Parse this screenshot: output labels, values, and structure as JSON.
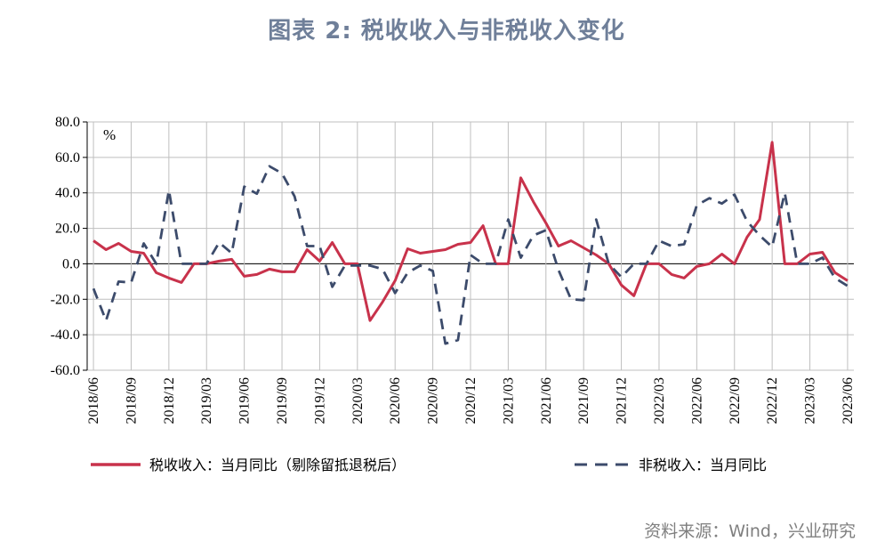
{
  "title": "图表 2: 税收收入与非税收入变化",
  "source": "资料来源：Wind，兴业研究",
  "colors": {
    "tax": "#c8324b",
    "nontax": "#3c4b6b",
    "grid": "#bfbfbf"
  },
  "chart_data": {
    "type": "line",
    "unit": "%",
    "ylim": [
      -60,
      80
    ],
    "yticks": [
      "80.0",
      "60.0",
      "40.0",
      "20.0",
      "0.0",
      "-20.0",
      "-40.0",
      "-60.0"
    ],
    "x_tick_labels": [
      "2018/06",
      "2018/09",
      "2018/12",
      "2019/03",
      "2019/06",
      "2019/09",
      "2019/12",
      "2020/03",
      "2020/06",
      "2020/09",
      "2020/12",
      "2021/03",
      "2021/06",
      "2021/09",
      "2021/12",
      "2022/03",
      "2022/06",
      "2022/09",
      "2022/12",
      "2023/03",
      "2023/06"
    ],
    "x": [
      "2018/06",
      "2018/07",
      "2018/08",
      "2018/09",
      "2018/10",
      "2018/11",
      "2018/12",
      "2019/01",
      "2019/02",
      "2019/03",
      "2019/04",
      "2019/05",
      "2019/06",
      "2019/07",
      "2019/08",
      "2019/09",
      "2019/10",
      "2019/11",
      "2019/12",
      "2020/01",
      "2020/02",
      "2020/03",
      "2020/04",
      "2020/05",
      "2020/06",
      "2020/07",
      "2020/08",
      "2020/09",
      "2020/10",
      "2020/11",
      "2020/12",
      "2021/01",
      "2021/02",
      "2021/03",
      "2021/04",
      "2021/05",
      "2021/06",
      "2021/07",
      "2021/08",
      "2021/09",
      "2021/10",
      "2021/11",
      "2021/12",
      "2022/01",
      "2022/02",
      "2022/03",
      "2022/04",
      "2022/05",
      "2022/06",
      "2022/07",
      "2022/08",
      "2022/09",
      "2022/10",
      "2022/11",
      "2022/12",
      "2023/01",
      "2023/02",
      "2023/03",
      "2023/04",
      "2023/05",
      "2023/06"
    ],
    "series": [
      {
        "name": "税收收入：当月同比（剔除留抵退税后）",
        "style": "solid",
        "values": [
          13,
          8,
          11.5,
          7,
          6,
          -5,
          -8,
          -10.5,
          0,
          0,
          1.5,
          2.5,
          -7,
          -6,
          -3,
          -4.5,
          -4.5,
          8,
          1.5,
          12,
          0,
          0,
          -32,
          -21.5,
          -9.5,
          8.5,
          6,
          7,
          8,
          11,
          12,
          21.5,
          0,
          0,
          48.5,
          35,
          23,
          10,
          13,
          9,
          5,
          0,
          -12,
          -18,
          0,
          0,
          -6,
          -8,
          -1.5,
          0,
          5.5,
          0,
          15,
          25,
          68.5,
          0,
          0,
          5.5,
          6.5,
          -5,
          -9.5
        ]
      },
      {
        "name": "非税收入：当月同比",
        "style": "dashed",
        "values": [
          -14,
          -32,
          -10,
          -10.5,
          11.5,
          0,
          41.5,
          0,
          0,
          0,
          12,
          6,
          43.5,
          39.5,
          55,
          51,
          38,
          10,
          10,
          -13,
          -1,
          -1,
          -1,
          -3,
          -16.5,
          -5,
          -1,
          -4,
          -45,
          -43,
          5,
          0,
          0,
          25,
          3.5,
          16,
          19,
          -3.5,
          -20,
          -20.5,
          25,
          0,
          -7.5,
          0,
          0,
          13,
          10,
          11,
          33,
          37,
          34,
          39,
          24,
          16,
          9.5,
          40,
          0,
          0,
          3.5,
          -8,
          -12.5
        ]
      }
    ]
  }
}
